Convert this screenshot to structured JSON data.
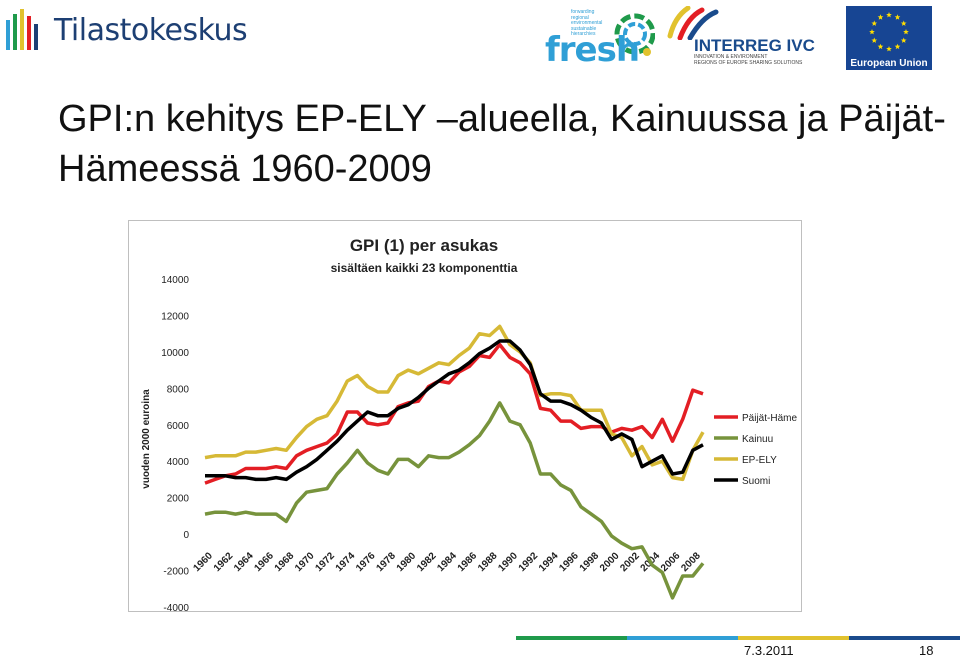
{
  "logos": {
    "tilastokeskus": "Tilastokeskus",
    "fresh": "fresh",
    "fresh_tagline": "forwarding\nregional\nenvironmental\nsustainable\nhierarchies",
    "interreg": "INTERREG IVC",
    "interreg_sub": "INNOVATION & ENVIRONMENT\nREGIONS OF EUROPE SHARING SOLUTIONS",
    "eu": "European Union"
  },
  "headline": "GPI:n kehitys EP-ELY –alueella, Kainuussa ja Päijät-Hämeessä 1960-2009",
  "footer": {
    "date": "7.3.2011",
    "page": "18"
  },
  "colors": {
    "paijat_hame": "#e31e24",
    "kainuu": "#77933c",
    "ep_ely": "#d6b936",
    "suomi": "#000000",
    "footer_segments": [
      "#1f9a4b",
      "#2f9fd6",
      "#e1c22e",
      "#1a4b8c"
    ]
  },
  "chart_data": {
    "type": "line",
    "title": "GPI (1) per asukas",
    "subtitle": "sisältäen kaikki 23 komponenttia",
    "ylabel": "vuoden 2000 euroina",
    "xlabel": "",
    "ylim": [
      -4000,
      14000
    ],
    "yticks": [
      -4000,
      -2000,
      0,
      2000,
      4000,
      6000,
      8000,
      10000,
      12000,
      14000
    ],
    "xticks": [
      1960,
      1962,
      1964,
      1966,
      1968,
      1970,
      1972,
      1974,
      1976,
      1978,
      1980,
      1982,
      1984,
      1986,
      1988,
      1990,
      1992,
      1994,
      1996,
      1998,
      2000,
      2002,
      2004,
      2006,
      2008
    ],
    "x": [
      1960,
      1961,
      1962,
      1963,
      1964,
      1965,
      1966,
      1967,
      1968,
      1969,
      1970,
      1971,
      1972,
      1973,
      1974,
      1975,
      1976,
      1977,
      1978,
      1979,
      1980,
      1981,
      1982,
      1983,
      1984,
      1985,
      1986,
      1987,
      1988,
      1989,
      1990,
      1991,
      1992,
      1993,
      1994,
      1995,
      1996,
      1997,
      1998,
      1999,
      2000,
      2001,
      2002,
      2003,
      2004,
      2005,
      2006,
      2007,
      2008,
      2009
    ],
    "grid": false,
    "legend_position": "right",
    "series": [
      {
        "name": "Päijät-Häme",
        "color": "#e31e24",
        "values": [
          2800,
          3000,
          3200,
          3300,
          3600,
          3600,
          3600,
          3700,
          3600,
          4300,
          4600,
          4800,
          5000,
          5500,
          6700,
          6700,
          6100,
          6000,
          6100,
          7000,
          7200,
          7300,
          8100,
          8400,
          8300,
          8900,
          9200,
          9800,
          9700,
          10400,
          9700,
          9400,
          8800,
          6900,
          6800,
          6200,
          6200,
          5800,
          5900,
          5900,
          5600,
          5800,
          5700,
          5900,
          5300,
          6300,
          5100,
          6300,
          7900,
          7700
        ]
      },
      {
        "name": "Kainuu",
        "color": "#77933c",
        "values": [
          1100,
          1200,
          1200,
          1100,
          1200,
          1100,
          1100,
          1100,
          700,
          1700,
          2300,
          2400,
          2500,
          3300,
          3900,
          4600,
          3900,
          3500,
          3300,
          4100,
          4100,
          3700,
          4300,
          4200,
          4200,
          4500,
          4900,
          5400,
          6200,
          7200,
          6200,
          6000,
          5000,
          3300,
          3300,
          2700,
          2400,
          1500,
          1100,
          700,
          -100,
          -500,
          -800,
          -700,
          -1700,
          -2100,
          -3500,
          -2300,
          -2300,
          -1600
        ]
      },
      {
        "name": "EP-ELY",
        "color": "#d6b936",
        "values": [
          4200,
          4300,
          4300,
          4300,
          4500,
          4500,
          4600,
          4700,
          4600,
          5300,
          5900,
          6300,
          6500,
          7300,
          8400,
          8700,
          8100,
          7800,
          7800,
          8700,
          9000,
          8800,
          9100,
          9400,
          9300,
          9800,
          10200,
          11000,
          10900,
          11400,
          10400,
          10000,
          9400,
          7600,
          7700,
          7700,
          7600,
          6800,
          6800,
          6800,
          5500,
          5300,
          4300,
          4800,
          3800,
          4000,
          3100,
          3000,
          4600,
          5600
        ]
      },
      {
        "name": "Suomi",
        "color": "#000000",
        "values": [
          3200,
          3200,
          3200,
          3100,
          3100,
          3000,
          3000,
          3100,
          3000,
          3400,
          3700,
          4100,
          4600,
          5100,
          5700,
          6200,
          6700,
          6500,
          6500,
          6900,
          7100,
          7500,
          8000,
          8400,
          8800,
          9000,
          9400,
          9900,
          10200,
          10600,
          10600,
          10100,
          9300,
          7700,
          7300,
          7300,
          7100,
          6800,
          6400,
          6100,
          5200,
          5500,
          5200,
          3700,
          4000,
          4300,
          3300,
          3400,
          4600,
          4900
        ]
      }
    ]
  }
}
